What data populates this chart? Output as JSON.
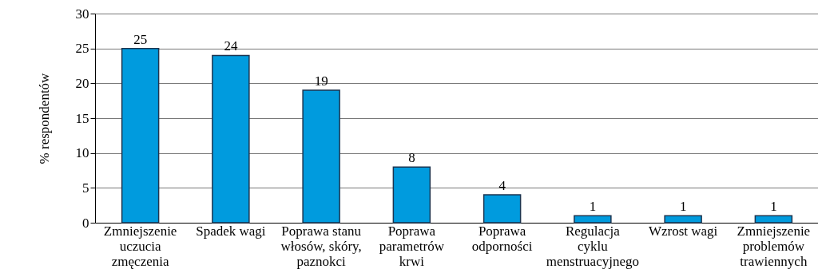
{
  "chart_data": {
    "type": "bar",
    "ylabel": "% respondentów",
    "categories": [
      "Zmniejszenie uczucia zmęczenia",
      "Spadek wagi",
      "Poprawa stanu włosów, skóry, paznokci",
      "Poprawa parametrów krwi",
      "Poprawa odporności",
      "Regulacja cyklu menstruacyjnego",
      "Wzrost wagi",
      "Zmniejszenie problemów trawiennych"
    ],
    "values": [
      25,
      24,
      19,
      8,
      4,
      1,
      1,
      1
    ],
    "color": "#009bde",
    "ylim": [
      0,
      30
    ],
    "yticks": [
      0,
      5,
      10,
      15,
      20,
      25,
      30
    ],
    "grid": "y",
    "data_labels": true
  }
}
